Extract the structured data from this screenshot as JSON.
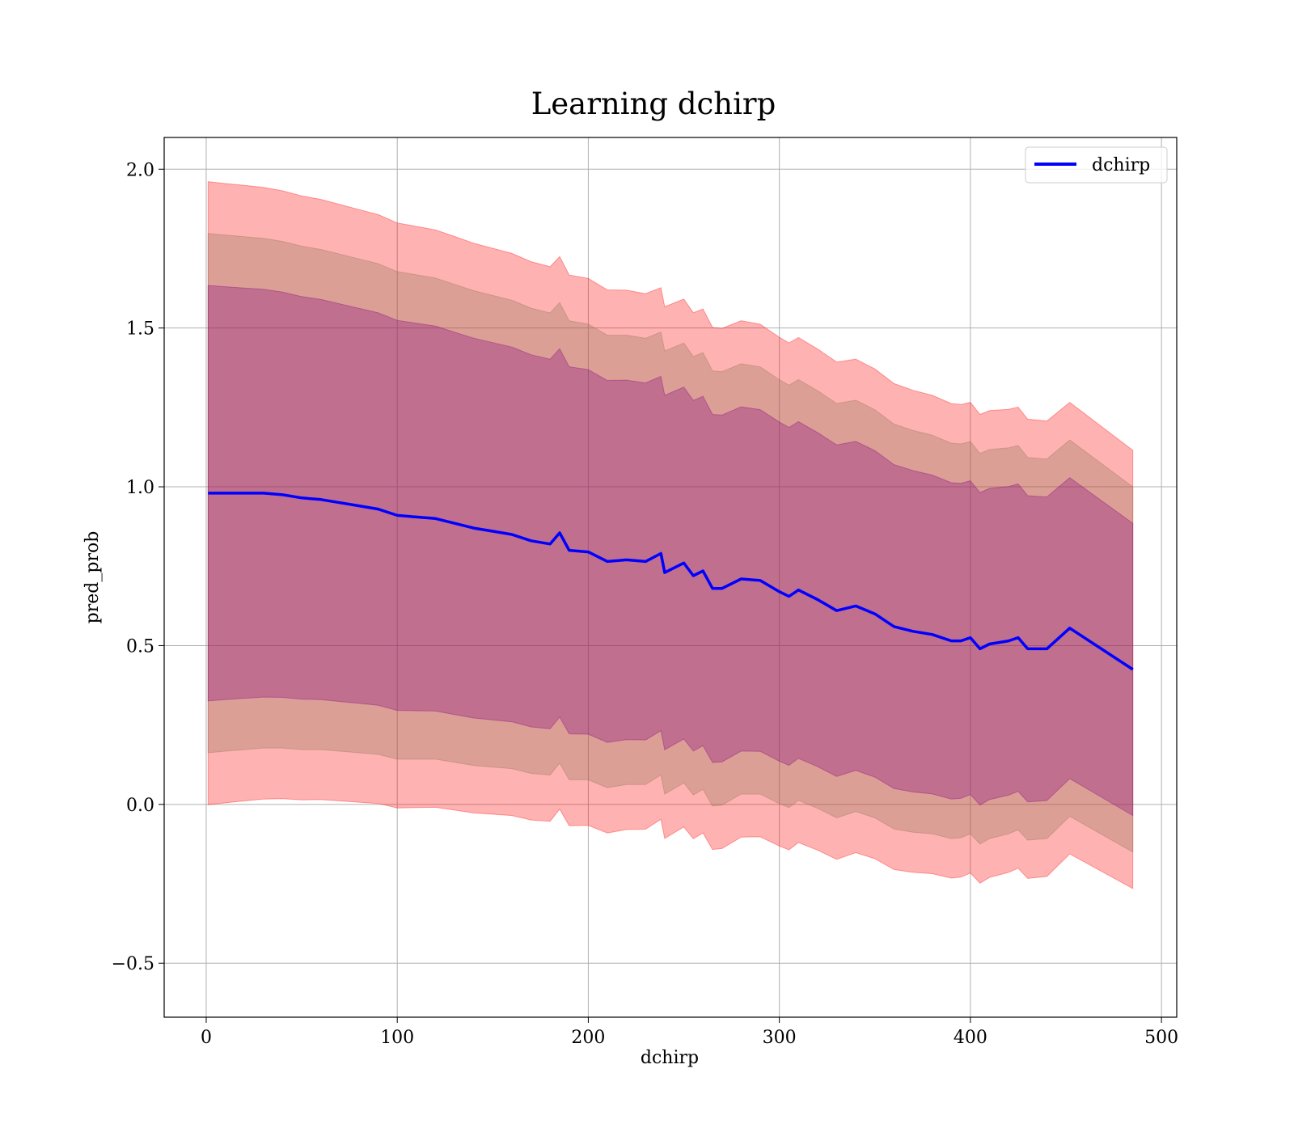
{
  "chart_data": {
    "type": "line",
    "title": "Learning dchirp",
    "xlabel": "dchirp",
    "ylabel": "pred_prob",
    "xlim": [
      -22,
      508
    ],
    "ylim": [
      -0.67,
      2.1
    ],
    "xticks": [
      0,
      100,
      200,
      300,
      400,
      500
    ],
    "yticks": [
      -0.5,
      0.0,
      0.5,
      1.0,
      1.5,
      2.0
    ],
    "xtick_labels": [
      "0",
      "100",
      "200",
      "300",
      "400",
      "500"
    ],
    "ytick_labels": [
      "−0.5",
      "0.0",
      "0.5",
      "1.0",
      "1.5",
      "2.0"
    ],
    "grid": true,
    "legend": {
      "position": "upper right",
      "entries": [
        "dchirp"
      ]
    },
    "colors": {
      "line": "#0000ff",
      "band_outer": "#ff0000",
      "band_middle": "#8b7355",
      "band_inner": "#800080"
    },
    "band_alphas": {
      "outer": 0.3,
      "middle": 0.3,
      "inner": 0.3
    },
    "band_sigma_multipliers": {
      "outer": 3,
      "middle": 2.5,
      "inner": 2
    },
    "series": [
      {
        "name": "dchirp",
        "x": [
          1,
          10,
          20,
          30,
          40,
          50,
          60,
          70,
          80,
          90,
          100,
          110,
          120,
          130,
          140,
          150,
          160,
          170,
          180,
          185,
          190,
          200,
          210,
          220,
          230,
          238,
          240,
          245,
          250,
          255,
          260,
          265,
          270,
          280,
          290,
          300,
          305,
          310,
          320,
          330,
          340,
          350,
          360,
          370,
          380,
          390,
          395,
          400,
          405,
          410,
          420,
          425,
          430,
          440,
          452,
          485
        ],
        "y": [
          0.98,
          0.98,
          0.98,
          0.98,
          0.975,
          0.965,
          0.96,
          0.95,
          0.94,
          0.93,
          0.91,
          0.905,
          0.9,
          0.885,
          0.87,
          0.86,
          0.85,
          0.83,
          0.82,
          0.855,
          0.8,
          0.795,
          0.765,
          0.77,
          0.765,
          0.79,
          0.73,
          0.745,
          0.76,
          0.72,
          0.735,
          0.68,
          0.68,
          0.71,
          0.705,
          0.67,
          0.655,
          0.675,
          0.645,
          0.61,
          0.625,
          0.6,
          0.56,
          0.545,
          0.535,
          0.515,
          0.515,
          0.525,
          0.49,
          0.505,
          0.515,
          0.525,
          0.49,
          0.49,
          0.555,
          0.425
        ],
        "sigma": [
          0.327,
          0.325,
          0.323,
          0.321,
          0.319,
          0.317,
          0.315,
          0.313,
          0.311,
          0.309,
          0.307,
          0.305,
          0.303,
          0.301,
          0.299,
          0.297,
          0.295,
          0.293,
          0.291,
          0.29,
          0.289,
          0.287,
          0.285,
          0.283,
          0.281,
          0.279,
          0.279,
          0.278,
          0.277,
          0.276,
          0.275,
          0.274,
          0.273,
          0.271,
          0.269,
          0.267,
          0.266,
          0.265,
          0.263,
          0.261,
          0.259,
          0.257,
          0.255,
          0.253,
          0.251,
          0.249,
          0.248,
          0.247,
          0.246,
          0.245,
          0.243,
          0.242,
          0.241,
          0.239,
          0.237,
          0.23
        ]
      }
    ]
  }
}
